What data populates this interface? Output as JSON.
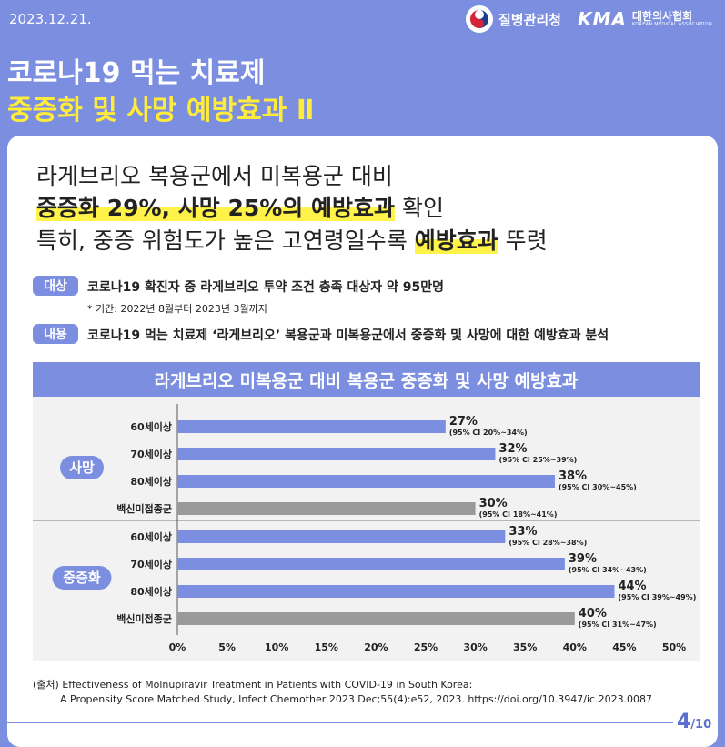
{
  "header": {
    "date": "2023.12.21.",
    "kdca_name": "질병관리청",
    "kma_mark": "KMA",
    "kma_name": "대한의사협회",
    "kma_en": "KOREAN MEDICAL ASSOCIATION"
  },
  "title": {
    "line1": "코로나19 먹는 치료제",
    "line2": "중증화 및 사망 예방효과 Ⅱ"
  },
  "headline": {
    "line1": "라게브리오 복용군에서 미복용군 대비",
    "line2_highlight": "중증화 29%, 사망 25%의 예방효과",
    "line2_rest": " 확인",
    "line3_pre": "특히, 중증 위험도가 높은 고연령일수록 ",
    "line3_highlight": "예방효과",
    "line3_post": " 뚜렷"
  },
  "target": {
    "tag": "대상",
    "text": "코로나19 확진자 중 라게브리오 투약 조건 충족 대상자 약 95만명",
    "note": "* 기간: 2022년 8월부터 2023년 3월까지"
  },
  "content": {
    "tag": "내용",
    "text": "코로나19 먹는 치료제 ‘라게브리오’ 복용군과 미복용군에서 중증화 및 사망에 대한 예방효과 분석"
  },
  "chart_data": {
    "type": "bar",
    "orientation": "horizontal",
    "title": "라게브리오 미복용군 대비 복용군 중증화 및 사망 예방효과",
    "xlim": [
      0,
      50
    ],
    "x_ticks": [
      "0%",
      "5%",
      "10%",
      "15%",
      "20%",
      "25%",
      "30%",
      "35%",
      "40%",
      "45%",
      "50%"
    ],
    "groups": [
      {
        "name": "사망",
        "bars": [
          {
            "label": "60세이상",
            "value": 27,
            "value_label": "27%",
            "ci": "(95% CI 20%~34%)",
            "color": "#7b8ee0"
          },
          {
            "label": "70세이상",
            "value": 32,
            "value_label": "32%",
            "ci": "(95% CI 25%~39%)",
            "color": "#7b8ee0"
          },
          {
            "label": "80세이상",
            "value": 38,
            "value_label": "38%",
            "ci": "(95% CI 30%~45%)",
            "color": "#7b8ee0"
          },
          {
            "label": "백신미접종군",
            "value": 30,
            "value_label": "30%",
            "ci": "(95% CI 18%~41%)",
            "color": "#9a9a9a"
          }
        ]
      },
      {
        "name": "중증화",
        "bars": [
          {
            "label": "60세이상",
            "value": 33,
            "value_label": "33%",
            "ci": "(95% CI 28%~38%)",
            "color": "#7b8ee0"
          },
          {
            "label": "70세이상",
            "value": 39,
            "value_label": "39%",
            "ci": "(95% CI 34%~43%)",
            "color": "#7b8ee0"
          },
          {
            "label": "80세이상",
            "value": 44,
            "value_label": "44%",
            "ci": "(95% CI 39%~49%)",
            "color": "#7b8ee0"
          },
          {
            "label": "백신미접종군",
            "value": 40,
            "value_label": "40%",
            "ci": "(95% CI 31%~47%)",
            "color": "#9a9a9a"
          }
        ]
      }
    ]
  },
  "source": {
    "line1": "(출처) Effectiveness of Molnupiravir Treatment in Patients with COVID-19 in South Korea:",
    "line2": "A Propensity Score Matched Study, Infect Chemother 2023 Dec;55(4):e52, 2023. https://doi.org/10.3947/ic.2023.0087"
  },
  "page": {
    "current": "4",
    "total": "/10"
  },
  "colors": {
    "primary": "#7b8ee0",
    "highlight": "#fff34a",
    "title_yellow": "#ffeb3b",
    "gray_bar": "#9a9a9a"
  }
}
